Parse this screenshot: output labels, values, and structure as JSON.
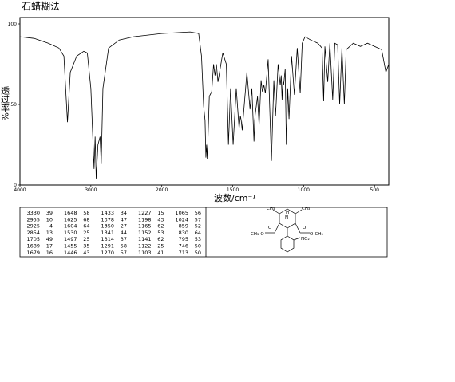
{
  "chart_data": {
    "type": "line",
    "title": "石蜡糊法",
    "xlabel": "波数/cm⁻¹",
    "ylabel": "透过率%",
    "xlim": [
      4000,
      400
    ],
    "xscale_break": 2000,
    "xticks": [
      4000,
      3000,
      2000,
      1500,
      1000,
      500
    ],
    "ylim": [
      0,
      100
    ],
    "yticks": [
      0,
      50,
      100
    ],
    "x": [
      4000,
      3800,
      3600,
      3450,
      3380,
      3330,
      3290,
      3200,
      3100,
      3050,
      3000,
      2955,
      2940,
      2925,
      2900,
      2870,
      2854,
      2830,
      2750,
      2600,
      2400,
      2200,
      2000,
      1800,
      1740,
      1720,
      1705,
      1695,
      1689,
      1684,
      1679,
      1665,
      1648,
      1635,
      1625,
      1615,
      1604,
      1570,
      1545,
      1530,
      1515,
      1497,
      1475,
      1455,
      1446,
      1440,
      1433,
      1400,
      1378,
      1365,
      1350,
      1345,
      1341,
      1325,
      1314,
      1300,
      1291,
      1280,
      1270,
      1250,
      1227,
      1210,
      1198,
      1180,
      1165,
      1158,
      1152,
      1146,
      1141,
      1130,
      1122,
      1112,
      1103,
      1085,
      1065,
      1045,
      1024,
      1010,
      990,
      950,
      900,
      870,
      859,
      850,
      830,
      815,
      795,
      780,
      760,
      746,
      730,
      713,
      700,
      650,
      600,
      550,
      500,
      450,
      420,
      400
    ],
    "series": [
      {
        "color": "#000000",
        "values": [
          92,
          91,
          88,
          85,
          80,
          39,
          70,
          80,
          83,
          82,
          60,
          10,
          30,
          4,
          25,
          30,
          13,
          60,
          85,
          90,
          92,
          93,
          94,
          95,
          94,
          80,
          49,
          40,
          17,
          25,
          16,
          55,
          58,
          75,
          68,
          75,
          64,
          82,
          75,
          25,
          60,
          25,
          60,
          35,
          43,
          40,
          34,
          70,
          47,
          60,
          27,
          40,
          44,
          55,
          37,
          65,
          58,
          62,
          57,
          78,
          15,
          65,
          43,
          75,
          62,
          68,
          53,
          65,
          62,
          72,
          25,
          60,
          41,
          80,
          56,
          85,
          57,
          88,
          92,
          90,
          88,
          85,
          52,
          86,
          64,
          88,
          53,
          88,
          87,
          50,
          85,
          50,
          84,
          88,
          86,
          88,
          86,
          84,
          70,
          75
        ]
      }
    ]
  },
  "peak_table": {
    "columns": [
      [
        [
          "3330",
          "39"
        ],
        [
          "2955",
          "10"
        ],
        [
          "2925",
          "4"
        ],
        [
          "2854",
          "13"
        ],
        [
          "1705",
          "49"
        ],
        [
          "1689",
          "17"
        ],
        [
          "1679",
          "16"
        ]
      ],
      [
        [
          "1648",
          "58"
        ],
        [
          "1625",
          "68"
        ],
        [
          "1604",
          "64"
        ],
        [
          "1530",
          "25"
        ],
        [
          "1497",
          "25"
        ],
        [
          "1455",
          "35"
        ],
        [
          "1446",
          "43"
        ]
      ],
      [
        [
          "1433",
          "34"
        ],
        [
          "1378",
          "47"
        ],
        [
          "1350",
          "27"
        ],
        [
          "1341",
          "44"
        ],
        [
          "1314",
          "37"
        ],
        [
          "1291",
          "58"
        ],
        [
          "1270",
          "57"
        ]
      ],
      [
        [
          "1227",
          "15"
        ],
        [
          "1198",
          "43"
        ],
        [
          "1165",
          "62"
        ],
        [
          "1152",
          "53"
        ],
        [
          "1141",
          "62"
        ],
        [
          "1122",
          "25"
        ],
        [
          "1103",
          "41"
        ]
      ],
      [
        [
          "1065",
          "56"
        ],
        [
          "1024",
          "57"
        ],
        [
          "859",
          "52"
        ],
        [
          "830",
          "64"
        ],
        [
          "795",
          "53"
        ],
        [
          "746",
          "50"
        ],
        [
          "713",
          "50"
        ]
      ]
    ]
  },
  "structure": {
    "labels": [
      "CH₃",
      "H",
      "N",
      "CH₃",
      "CH₃-O",
      "O",
      "O",
      "O-CH₃",
      "NO₂"
    ]
  }
}
